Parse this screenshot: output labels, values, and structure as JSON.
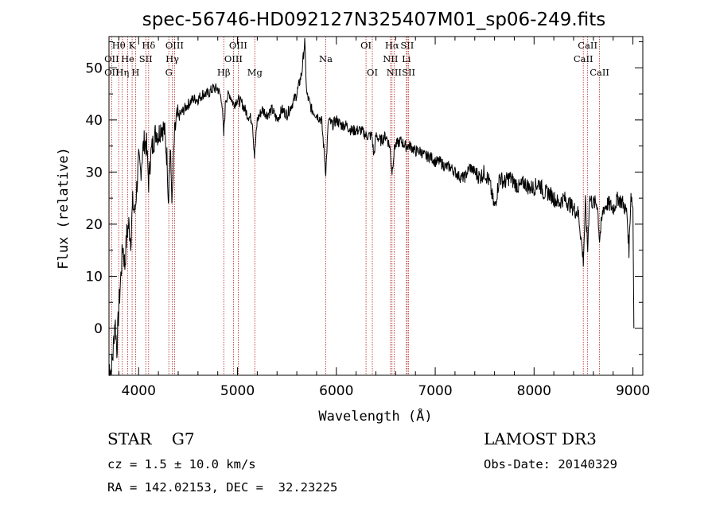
{
  "chart_data": {
    "type": "line",
    "title": "spec-56746-HD092127N325407M01_sp06-249.fits",
    "xlabel": "Wavelength (Å)",
    "ylabel": "Flux (relative)",
    "xlim": [
      3700,
      9100
    ],
    "ylim": [
      -9,
      56
    ],
    "xticks": [
      4000,
      5000,
      6000,
      7000,
      8000,
      9000
    ],
    "yticks": [
      0,
      10,
      20,
      30,
      40,
      50
    ],
    "series": [
      {
        "values_xy": [
          [
            3700,
            -7
          ],
          [
            3720,
            -8
          ],
          [
            3740,
            -5
          ],
          [
            3760,
            2
          ],
          [
            3780,
            -4
          ],
          [
            3800,
            4
          ],
          [
            3820,
            10
          ],
          [
            3840,
            16
          ],
          [
            3860,
            12
          ],
          [
            3880,
            18
          ],
          [
            3900,
            20
          ],
          [
            3920,
            17
          ],
          [
            3940,
            24
          ],
          [
            3960,
            22
          ],
          [
            3980,
            27
          ],
          [
            4000,
            32
          ],
          [
            4020,
            30
          ],
          [
            4040,
            34
          ],
          [
            4060,
            36
          ],
          [
            4080,
            35
          ],
          [
            4101,
            28
          ],
          [
            4120,
            33
          ],
          [
            4150,
            36
          ],
          [
            4180,
            38
          ],
          [
            4200,
            37
          ],
          [
            4230,
            39
          ],
          [
            4260,
            38
          ],
          [
            4290,
            32
          ],
          [
            4300,
            25
          ],
          [
            4320,
            34
          ],
          [
            4340,
            24
          ],
          [
            4360,
            36
          ],
          [
            4380,
            40
          ],
          [
            4420,
            41
          ],
          [
            4460,
            42
          ],
          [
            4500,
            43
          ],
          [
            4550,
            44
          ],
          [
            4600,
            44
          ],
          [
            4650,
            45
          ],
          [
            4700,
            45
          ],
          [
            4750,
            46
          ],
          [
            4800,
            46
          ],
          [
            4840,
            44
          ],
          [
            4861,
            37
          ],
          [
            4880,
            44
          ],
          [
            4920,
            45
          ],
          [
            4960,
            43
          ],
          [
            5000,
            44
          ],
          [
            5050,
            43
          ],
          [
            5100,
            41
          ],
          [
            5150,
            40
          ],
          [
            5172,
            33
          ],
          [
            5200,
            40
          ],
          [
            5250,
            42
          ],
          [
            5300,
            41
          ],
          [
            5350,
            42
          ],
          [
            5400,
            40
          ],
          [
            5450,
            42
          ],
          [
            5500,
            41
          ],
          [
            5550,
            43
          ],
          [
            5600,
            45
          ],
          [
            5650,
            49
          ],
          [
            5680,
            55
          ],
          [
            5700,
            45
          ],
          [
            5750,
            42
          ],
          [
            5800,
            41
          ],
          [
            5850,
            40
          ],
          [
            5893,
            30
          ],
          [
            5920,
            40
          ],
          [
            5960,
            39
          ],
          [
            6000,
            40
          ],
          [
            6050,
            39
          ],
          [
            6100,
            39
          ],
          [
            6150,
            38
          ],
          [
            6200,
            38
          ],
          [
            6250,
            38
          ],
          [
            6300,
            37
          ],
          [
            6360,
            37
          ],
          [
            6380,
            33
          ],
          [
            6400,
            37
          ],
          [
            6450,
            36
          ],
          [
            6500,
            37
          ],
          [
            6540,
            35
          ],
          [
            6563,
            30
          ],
          [
            6590,
            35
          ],
          [
            6650,
            36
          ],
          [
            6700,
            35
          ],
          [
            6750,
            35
          ],
          [
            6800,
            34
          ],
          [
            6850,
            34
          ],
          [
            6900,
            33
          ],
          [
            6950,
            33
          ],
          [
            7000,
            32
          ],
          [
            7050,
            32
          ],
          [
            7100,
            31
          ],
          [
            7150,
            31
          ],
          [
            7200,
            30
          ],
          [
            7250,
            29
          ],
          [
            7300,
            29
          ],
          [
            7350,
            31
          ],
          [
            7400,
            30
          ],
          [
            7450,
            29
          ],
          [
            7500,
            30
          ],
          [
            7550,
            28
          ],
          [
            7600,
            23
          ],
          [
            7650,
            29
          ],
          [
            7700,
            28
          ],
          [
            7750,
            29
          ],
          [
            7800,
            28
          ],
          [
            7850,
            27
          ],
          [
            7900,
            28
          ],
          [
            7950,
            27
          ],
          [
            8000,
            27
          ],
          [
            8050,
            28
          ],
          [
            8100,
            26
          ],
          [
            8150,
            26
          ],
          [
            8200,
            25
          ],
          [
            8250,
            24
          ],
          [
            8300,
            25
          ],
          [
            8350,
            24
          ],
          [
            8400,
            23
          ],
          [
            8450,
            22
          ],
          [
            8498,
            13
          ],
          [
            8520,
            24
          ],
          [
            8542,
            15
          ],
          [
            8560,
            25
          ],
          [
            8600,
            24
          ],
          [
            8640,
            24
          ],
          [
            8662,
            17
          ],
          [
            8700,
            23
          ],
          [
            8750,
            24
          ],
          [
            8800,
            23
          ],
          [
            8850,
            25
          ],
          [
            8900,
            24
          ],
          [
            8940,
            22
          ],
          [
            8960,
            15
          ],
          [
            8980,
            26
          ],
          [
            9000,
            23
          ],
          [
            9010,
            0
          ]
        ]
      }
    ],
    "line_markers": [
      {
        "label": "Hθ",
        "wl": 3798,
        "row": 0
      },
      {
        "label": "K",
        "wl": 3934,
        "row": 0
      },
      {
        "label": "Hδ",
        "wl": 4101,
        "row": 0
      },
      {
        "label": "OIII",
        "wl": 4363,
        "row": 0
      },
      {
        "label": "OIII",
        "wl": 5007,
        "row": 0
      },
      {
        "label": "OI",
        "wl": 6300,
        "row": 0
      },
      {
        "label": "Hα",
        "wl": 6563,
        "row": 0
      },
      {
        "label": "SII",
        "wl": 6717,
        "row": 0
      },
      {
        "label": "CaII",
        "wl": 8542,
        "row": 0
      },
      {
        "label": "OII",
        "wl": 3727,
        "row": 1
      },
      {
        "label": "He",
        "wl": 3889,
        "row": 1
      },
      {
        "label": "SII",
        "wl": 4072,
        "row": 1
      },
      {
        "label": "Hγ",
        "wl": 4340,
        "row": 1
      },
      {
        "label": "OIII",
        "wl": 4959,
        "row": 1
      },
      {
        "label": "Na",
        "wl": 5893,
        "row": 1
      },
      {
        "label": "NII",
        "wl": 6548,
        "row": 1
      },
      {
        "label": "Li",
        "wl": 6708,
        "row": 1
      },
      {
        "label": "CaII",
        "wl": 8498,
        "row": 1
      },
      {
        "label": "OII",
        "wl": 3727,
        "row": 2
      },
      {
        "label": "Hη",
        "wl": 3835,
        "row": 2
      },
      {
        "label": "H",
        "wl": 3969,
        "row": 2
      },
      {
        "label": "G",
        "wl": 4305,
        "row": 2
      },
      {
        "label": "Hβ",
        "wl": 4861,
        "row": 2
      },
      {
        "label": "Mg",
        "wl": 5175,
        "row": 2
      },
      {
        "label": "OI",
        "wl": 6364,
        "row": 2
      },
      {
        "label": "NII",
        "wl": 6584,
        "row": 2
      },
      {
        "label": "SII",
        "wl": 6731,
        "row": 2
      },
      {
        "label": "CaII",
        "wl": 8662,
        "row": 2
      }
    ]
  },
  "info": {
    "object": "STAR    G7",
    "survey": "LAMOST DR3",
    "cz": "cz = 1.5 ± 10.0 km/s",
    "obs_date": "Obs-Date: 20140329",
    "coords": "RA = 142.02153, DEC =  32.23225"
  }
}
